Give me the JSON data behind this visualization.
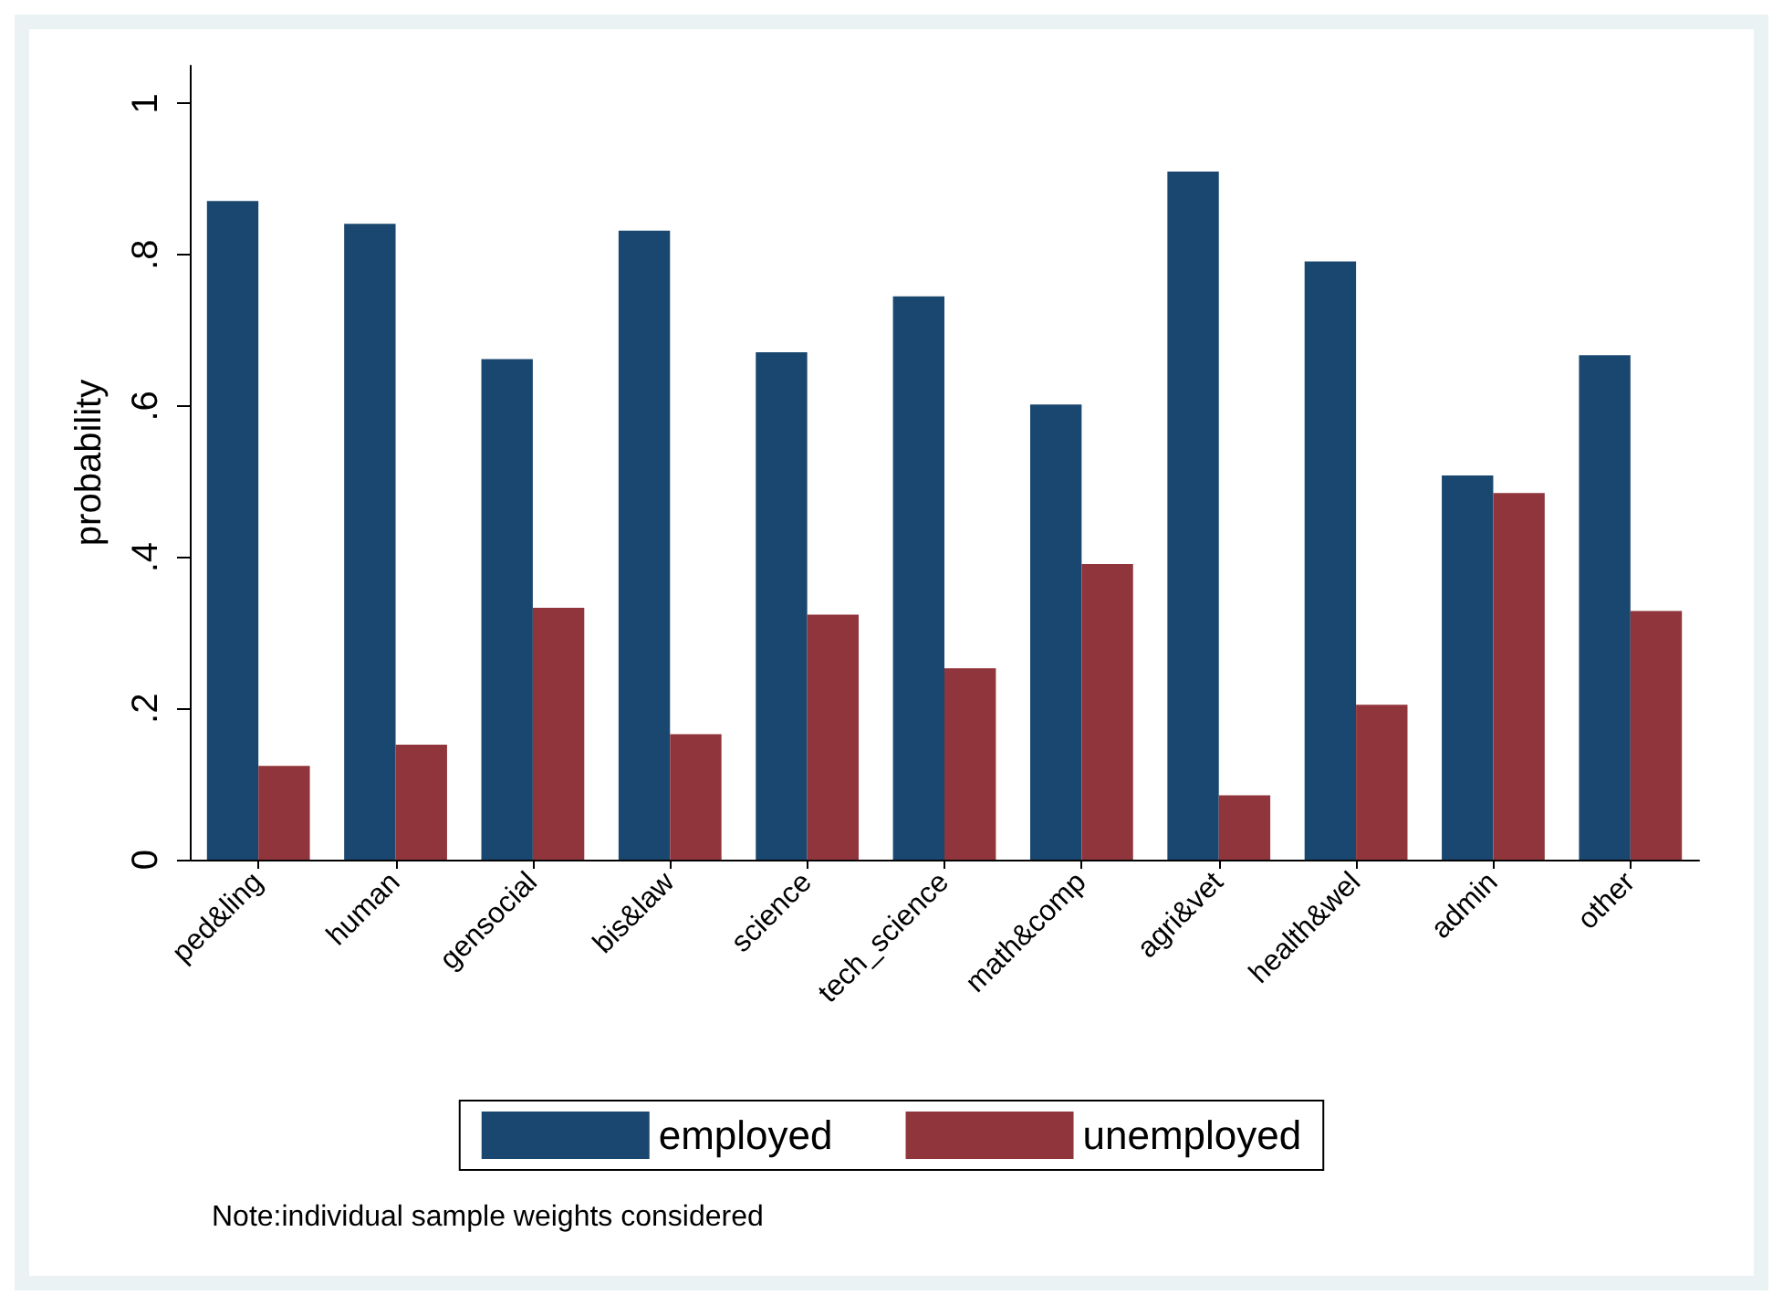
{
  "chart_data": {
    "type": "bar",
    "ylabel": "probability",
    "categories": [
      "ped&ling",
      "human",
      "gensocial",
      "bis&law",
      "science",
      "tech_science",
      "math&comp",
      "agri&vet",
      "health&wel",
      "admin",
      "other"
    ],
    "series": [
      {
        "name": "employed",
        "color": "#1a476f",
        "values": [
          0.871,
          0.841,
          0.662,
          0.832,
          0.671,
          0.745,
          0.602,
          0.91,
          0.791,
          0.508,
          0.667
        ]
      },
      {
        "name": "unemployed",
        "color": "#90353b",
        "values": [
          0.124,
          0.152,
          0.333,
          0.166,
          0.324,
          0.253,
          0.391,
          0.085,
          0.205,
          0.485,
          0.329
        ]
      }
    ],
    "ylim": [
      0,
      1.05
    ],
    "yticks": [
      {
        "value": 0,
        "label": "0"
      },
      {
        "value": 0.2,
        "label": ".2"
      },
      {
        "value": 0.4,
        "label": ".4"
      },
      {
        "value": 0.6,
        "label": ".6"
      },
      {
        "value": 0.8,
        "label": ".8"
      },
      {
        "value": 1,
        "label": "1"
      }
    ],
    "grid": false,
    "legend": "bottom",
    "annotations": [
      "Note:individual sample weights considered"
    ]
  }
}
